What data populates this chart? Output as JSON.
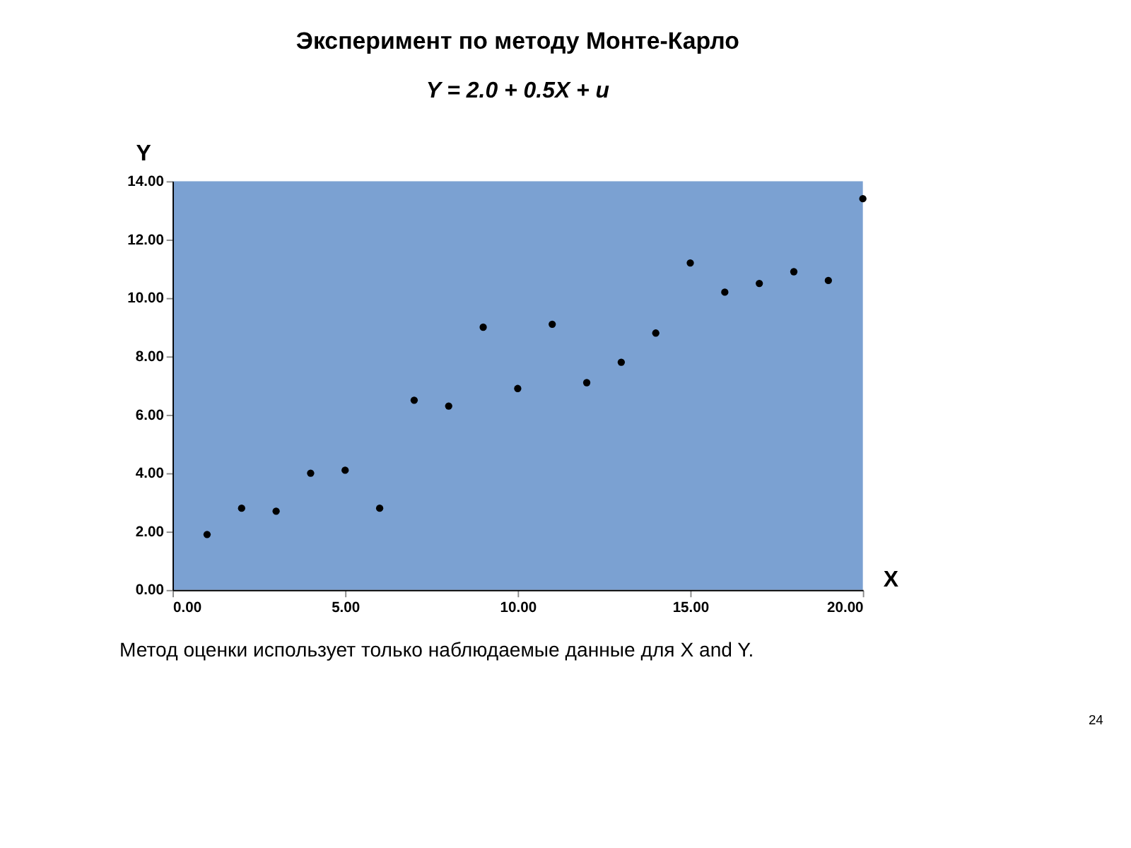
{
  "chart_data": {
    "type": "scatter",
    "title": "Эксперимент по методу Монте-Карло",
    "subtitle": "Y = 2.0 + 0.5X + u",
    "xlabel": "X",
    "ylabel": "Y",
    "x": [
      1,
      2,
      3,
      4,
      5,
      6,
      7,
      8,
      9,
      10,
      11,
      12,
      13,
      14,
      15,
      16,
      17,
      18,
      19,
      20
    ],
    "series": [
      {
        "color": "#000000",
        "values": [
          1.9,
          2.8,
          2.7,
          4.0,
          4.1,
          2.8,
          6.5,
          6.3,
          9.0,
          6.9,
          9.1,
          7.1,
          7.8,
          8.8,
          11.2,
          10.2,
          10.5,
          10.9,
          10.6,
          13.4
        ]
      }
    ],
    "xlim": [
      0,
      20
    ],
    "ylim": [
      0,
      14
    ],
    "xticks": [
      {
        "value": 0,
        "label": "0.00"
      },
      {
        "value": 5,
        "label": "5.00"
      },
      {
        "value": 10,
        "label": "10.00"
      },
      {
        "value": 15,
        "label": "15.00"
      },
      {
        "value": 20,
        "label": "20.00"
      }
    ],
    "yticks": [
      {
        "value": 0,
        "label": "0.00"
      },
      {
        "value": 2,
        "label": "2.00"
      },
      {
        "value": 4,
        "label": "4.00"
      },
      {
        "value": 6,
        "label": "6.00"
      },
      {
        "value": 8,
        "label": "8.00"
      },
      {
        "value": 10,
        "label": "10.00"
      },
      {
        "value": 12,
        "label": "12.00"
      },
      {
        "value": 14,
        "label": "14.00"
      }
    ],
    "marker": "circle",
    "grid": false,
    "legend": false,
    "annotations": [
      "Метод оценки использует только наблюдаемые данные для X and Y.",
      "24"
    ]
  }
}
